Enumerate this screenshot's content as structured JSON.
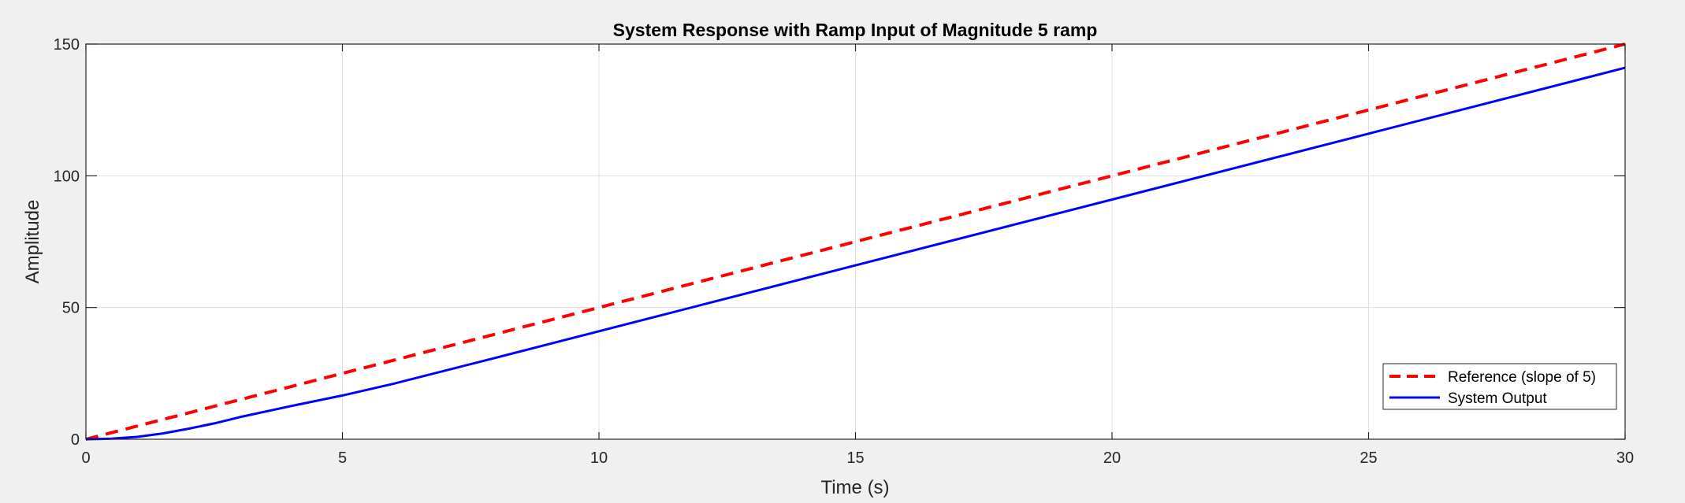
{
  "chart_data": {
    "type": "line",
    "title": "System Response with Ramp Input of Magnitude 5 ramp",
    "xlabel": "Time (s)",
    "ylabel": "Amplitude",
    "xlim": [
      0,
      30
    ],
    "ylim": [
      0,
      150
    ],
    "xticks": [
      0,
      5,
      10,
      15,
      20,
      25,
      30
    ],
    "yticks": [
      0,
      50,
      100,
      150
    ],
    "grid": true,
    "legend_position": "bottom-right",
    "series": [
      {
        "name": "Reference (slope of 5)",
        "color": "#ff0000",
        "style": "dashed",
        "x": [
          0,
          30
        ],
        "y": [
          0,
          150
        ]
      },
      {
        "name": "System Output",
        "color": "#0000ff",
        "style": "solid",
        "x": [
          0,
          0.5,
          1,
          1.5,
          2,
          2.5,
          3,
          4,
          5,
          6,
          8,
          10,
          15,
          20,
          25,
          30
        ],
        "y": [
          0,
          0.2,
          0.9,
          2.2,
          4.0,
          6.0,
          8.4,
          12.6,
          16.6,
          21.1,
          31.0,
          41.0,
          66.0,
          91.0,
          116.0,
          141.0
        ]
      }
    ]
  }
}
